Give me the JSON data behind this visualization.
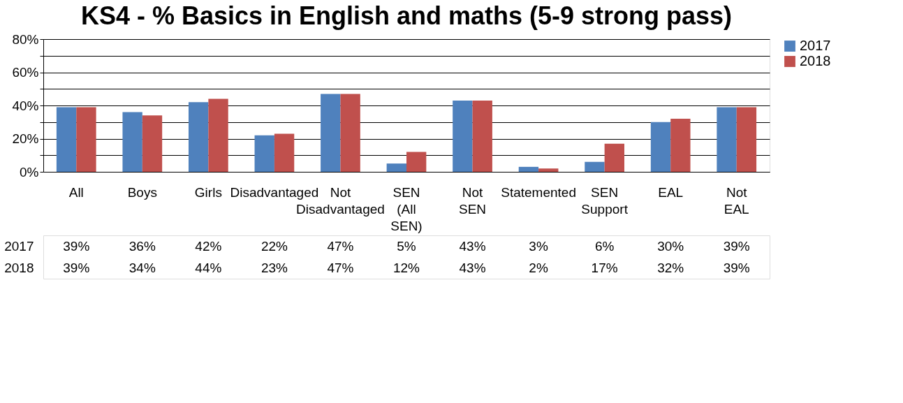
{
  "chart_data": {
    "type": "bar",
    "title": "KS4 - % Basics in English and maths (5-9 strong pass)",
    "categories": [
      "All",
      "Boys",
      "Girls",
      "Disadvantaged",
      "Not Disadvantaged",
      "SEN (All SEN)",
      "Not SEN",
      "Statemented",
      "SEN Support",
      "EAL",
      "Not EAL"
    ],
    "series": [
      {
        "name": "2017",
        "color": "#4f81bd",
        "values": [
          39,
          36,
          42,
          22,
          47,
          5,
          43,
          3,
          6,
          30,
          39
        ],
        "value_labels": [
          "39%",
          "36%",
          "42%",
          "22%",
          "47%",
          "5%",
          "43%",
          "3%",
          "6%",
          "30%",
          "39%"
        ]
      },
      {
        "name": "2018",
        "color": "#c0504d",
        "values": [
          39,
          34,
          44,
          23,
          47,
          12,
          43,
          2,
          17,
          32,
          39
        ],
        "value_labels": [
          "39%",
          "34%",
          "44%",
          "23%",
          "47%",
          "12%",
          "43%",
          "2%",
          "17%",
          "32%",
          "39%"
        ]
      }
    ],
    "ylim": [
      0,
      80
    ],
    "yticks": [
      {
        "value": 0,
        "label": "0%"
      },
      {
        "value": 10,
        "label": null
      },
      {
        "value": 20,
        "label": "20%"
      },
      {
        "value": 30,
        "label": null
      },
      {
        "value": 40,
        "label": "40%"
      },
      {
        "value": 50,
        "label": null
      },
      {
        "value": 60,
        "label": "60%"
      },
      {
        "value": 70,
        "label": null
      },
      {
        "value": 80,
        "label": "80%"
      }
    ],
    "grid": "y",
    "legend": "right"
  }
}
